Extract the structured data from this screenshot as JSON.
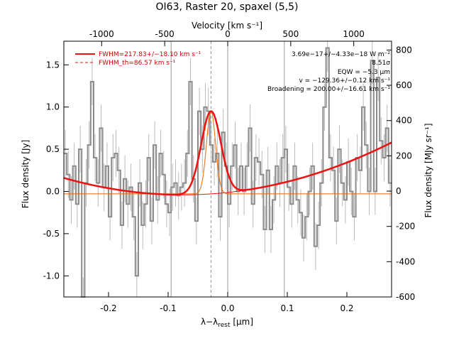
{
  "chart_data": {
    "type": "line",
    "title": "OI63, Raster 20, spaxel (5,5)",
    "xlabel": "λ−λrest [μm]",
    "xlabel_main": "λ−λ",
    "xlabel_sub": "rest",
    "xlabel_unit": " [μm]",
    "ylabel": "Flux density [Jy]",
    "top_xlabel": "Velocity [km s⁻¹]",
    "right_ylabel": "Flux density [MJy sr⁻¹]",
    "xlim": [
      -0.275,
      0.275
    ],
    "ylim": [
      -1.25,
      1.78
    ],
    "top_xlim": [
      -1300,
      1300
    ],
    "right_ylim": [
      -600,
      850
    ],
    "x_ticks": [
      "-0.2",
      "-0.1",
      "0.0",
      "0.1",
      "0.2"
    ],
    "x_tick_values": [
      -0.2,
      -0.1,
      0.0,
      0.1,
      0.2
    ],
    "y_ticks": [
      "-1.0",
      "-0.5",
      "0.0",
      "0.5",
      "1.0",
      "1.5"
    ],
    "y_tick_values": [
      -1.0,
      -0.5,
      0.0,
      0.5,
      1.0,
      1.5
    ],
    "top_ticks": [
      "-1000",
      "-500",
      "0",
      "500",
      "1000"
    ],
    "top_tick_values": [
      -1000,
      -500,
      0,
      500,
      1000
    ],
    "right_ticks": [
      "-600",
      "-400",
      "-200",
      "0",
      "200",
      "400",
      "600",
      "800"
    ],
    "right_tick_values": [
      -600,
      -400,
      -200,
      0,
      200,
      400,
      600,
      800
    ],
    "grid": false,
    "vertical_lines_x": [
      -0.095,
      0.0,
      0.095
    ],
    "line_center_x": -0.028,
    "legend": {
      "position": "top-left",
      "entries": [
        "FWHM=217.83+/−18.10 km s⁻¹",
        "FWHM_th=86.57 km s⁻¹"
      ]
    },
    "annotations": [
      "3.69e−17+/−4.33e−18 W m⁻²",
      "8.51σ",
      "EQW = −5.3 μm",
      "v = −129.36+/−0.12 km s⁻¹",
      "Broadening = 200.00+/−16.61 km s⁻¹"
    ],
    "colors": {
      "data": "#8c8c8c",
      "fit": "#ee1111",
      "instrument": "#ee6600",
      "vline": "#9a9a9a"
    },
    "series": [
      {
        "name": "data",
        "x": [
          -0.275,
          -0.27,
          -0.265,
          -0.26,
          -0.255,
          -0.25,
          -0.245,
          -0.24,
          -0.235,
          -0.23,
          -0.225,
          -0.22,
          -0.215,
          -0.21,
          -0.205,
          -0.2,
          -0.195,
          -0.19,
          -0.185,
          -0.18,
          -0.175,
          -0.17,
          -0.165,
          -0.16,
          -0.155,
          -0.15,
          -0.145,
          -0.14,
          -0.135,
          -0.13,
          -0.125,
          -0.12,
          -0.115,
          -0.11,
          -0.105,
          -0.1,
          -0.095,
          -0.09,
          -0.085,
          -0.08,
          -0.075,
          -0.07,
          -0.065,
          -0.06,
          -0.055,
          -0.05,
          -0.045,
          -0.04,
          -0.035,
          -0.03,
          -0.025,
          -0.02,
          -0.015,
          -0.01,
          -0.005,
          0.0,
          0.005,
          0.01,
          0.015,
          0.02,
          0.025,
          0.03,
          0.035,
          0.04,
          0.045,
          0.05,
          0.055,
          0.06,
          0.065,
          0.07,
          0.075,
          0.08,
          0.085,
          0.09,
          0.095,
          0.1,
          0.105,
          0.11,
          0.115,
          0.12,
          0.125,
          0.13,
          0.135,
          0.14,
          0.145,
          0.15,
          0.155,
          0.16,
          0.165,
          0.17,
          0.175,
          0.18,
          0.185,
          0.19,
          0.195,
          0.2,
          0.205,
          0.21,
          0.215,
          0.22,
          0.225,
          0.23,
          0.235,
          0.24,
          0.245,
          0.25,
          0.255,
          0.26,
          0.265,
          0.27
        ],
        "y": [
          0.45,
          0.2,
          -0.1,
          0.3,
          -0.15,
          0.5,
          -1.3,
          0.1,
          0.55,
          1.3,
          0.4,
          0.1,
          0.75,
          0.05,
          0.3,
          -0.3,
          0.4,
          0.45,
          0.25,
          -0.4,
          0.15,
          -0.15,
          0.05,
          -0.3,
          -1.0,
          0.1,
          -0.4,
          -0.15,
          0.4,
          -0.35,
          0.55,
          -0.1,
          0.45,
          0.2,
          -0.15,
          -0.25,
          0.05,
          0.1,
          -0.05,
          0.05,
          0.1,
          0.45,
          1.3,
          0.15,
          -0.35,
          0.95,
          0.5,
          1.0,
          0.95,
          0.55,
          0.35,
          0.45,
          -0.3,
          0.7,
          0.3,
          -0.15,
          0.3,
          0.55,
          0.0,
          0.3,
          0.0,
          0.3,
          0.75,
          -0.15,
          0.4,
          0.35,
          0.2,
          -0.45,
          0.25,
          -0.45,
          -0.1,
          0.3,
          0.1,
          0.4,
          0.5,
          0.05,
          -0.15,
          0.3,
          -0.1,
          -0.25,
          -0.55,
          -0.3,
          0.0,
          0.3,
          -0.65,
          -0.4,
          0.1,
          1.0,
          1.7,
          0.4,
          0.25,
          -0.35,
          0.5,
          0.1,
          -0.1,
          0.35,
          0.0,
          -0.3,
          0.4,
          0.25,
          1.0,
          0.55,
          0.0,
          1.55,
          0.0,
          1.35,
          0.6,
          0.4,
          0.75,
          0.1
        ],
        "error": 0.28
      },
      {
        "name": "fit",
        "model": "gaussian plus quadratic continuum",
        "peak": 0.95,
        "center": -0.028,
        "fwhm": 0.039,
        "continuum_min": -0.04,
        "continuum_min_x": -0.075,
        "continuum_at_left": 0.16,
        "continuum_at_right": 0.58
      },
      {
        "name": "instrumental profile",
        "model": "gaussian",
        "fwhm": 0.018
      }
    ]
  }
}
